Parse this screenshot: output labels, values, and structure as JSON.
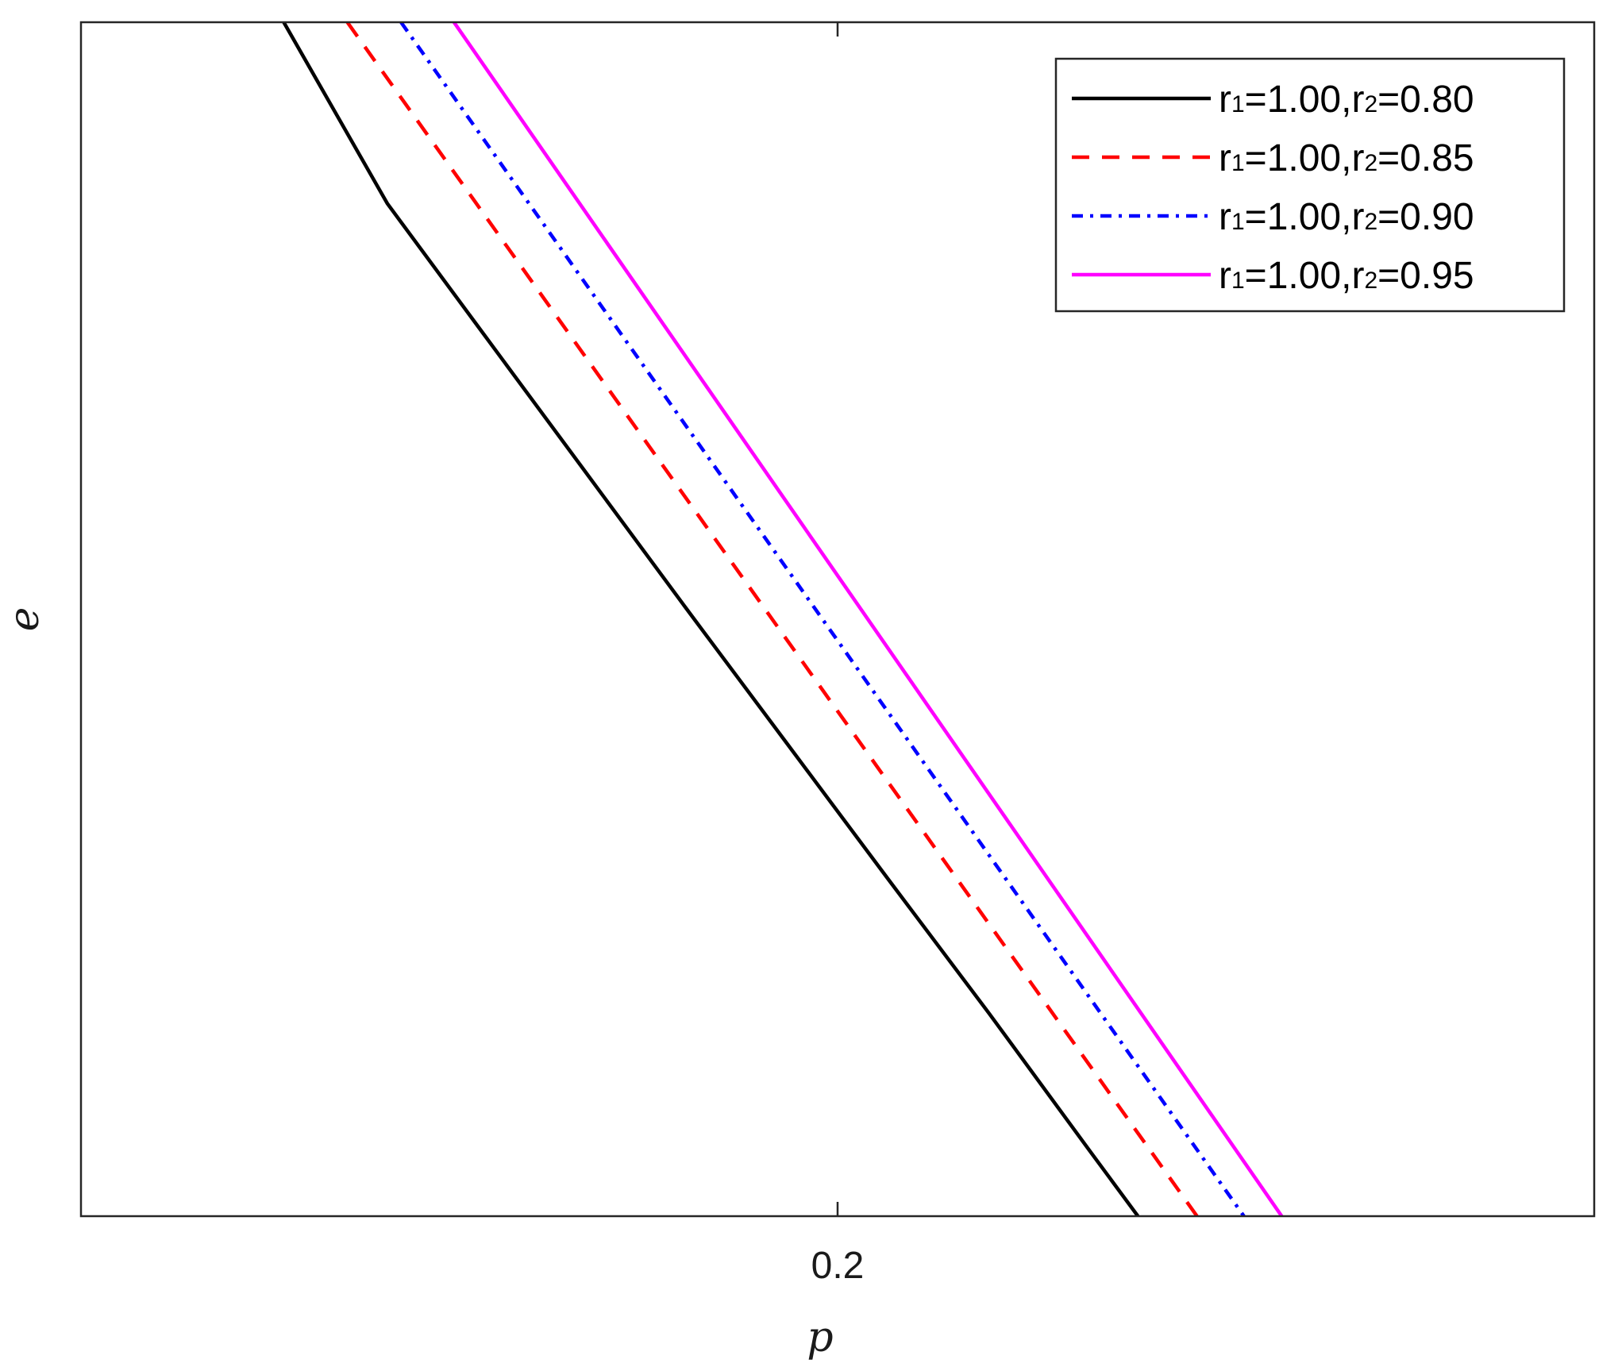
{
  "chart_data": {
    "type": "line",
    "title": "",
    "xlabel": "p",
    "ylabel": "e",
    "xlim": [
      0.1,
      0.3
    ],
    "ylim": [
      0,
      1
    ],
    "x_ticks": [
      0.2
    ],
    "x_tick_labels": [
      "0.2"
    ],
    "y_ticks": [],
    "grid": false,
    "legend_position": "top-right",
    "series": [
      {
        "name": "r1=1.00,r2=0.80",
        "label_parts": {
          "r": "r",
          "sub1": "1",
          "mid": "=1.00,r",
          "sub2": "2",
          "end": "=0.80"
        },
        "color": "#000000",
        "dash": "solid",
        "x": [
          0.1268,
          0.1405,
          0.1525,
          0.1666,
          0.18,
          0.1933,
          0.2066,
          0.22,
          0.2333,
          0.2397
        ],
        "y": [
          1.0,
          0.848,
          0.745,
          0.624,
          0.509,
          0.396,
          0.283,
          0.17,
          0.055,
          0.0
        ]
      },
      {
        "name": "r1=1.00,r2=0.85",
        "label_parts": {
          "r": "r",
          "sub1": "1",
          "mid": "=1.00,r",
          "sub2": "2",
          "end": "=0.85"
        },
        "color": "#ff0000",
        "dash": "dashed",
        "x": [
          0.1352,
          0.2475
        ],
        "y": [
          1.0,
          0.0
        ]
      },
      {
        "name": "r1=1.00,r2=0.90",
        "label_parts": {
          "r": "r",
          "sub1": "1",
          "mid": "=1.00,r",
          "sub2": "2",
          "end": "=0.90"
        },
        "color": "#0000ff",
        "dash": "dashdot",
        "x": [
          0.1423,
          0.2537
        ],
        "y": [
          1.0,
          0.0
        ]
      },
      {
        "name": "r1=1.00,r2=0.95",
        "label_parts": {
          "r": "r",
          "sub1": "1",
          "mid": "=1.00,r",
          "sub2": "2",
          "end": "=0.95"
        },
        "color": "#ff00ff",
        "dash": "solid",
        "x": [
          0.1493,
          0.2587
        ],
        "y": [
          1.0,
          0.0
        ]
      }
    ]
  }
}
